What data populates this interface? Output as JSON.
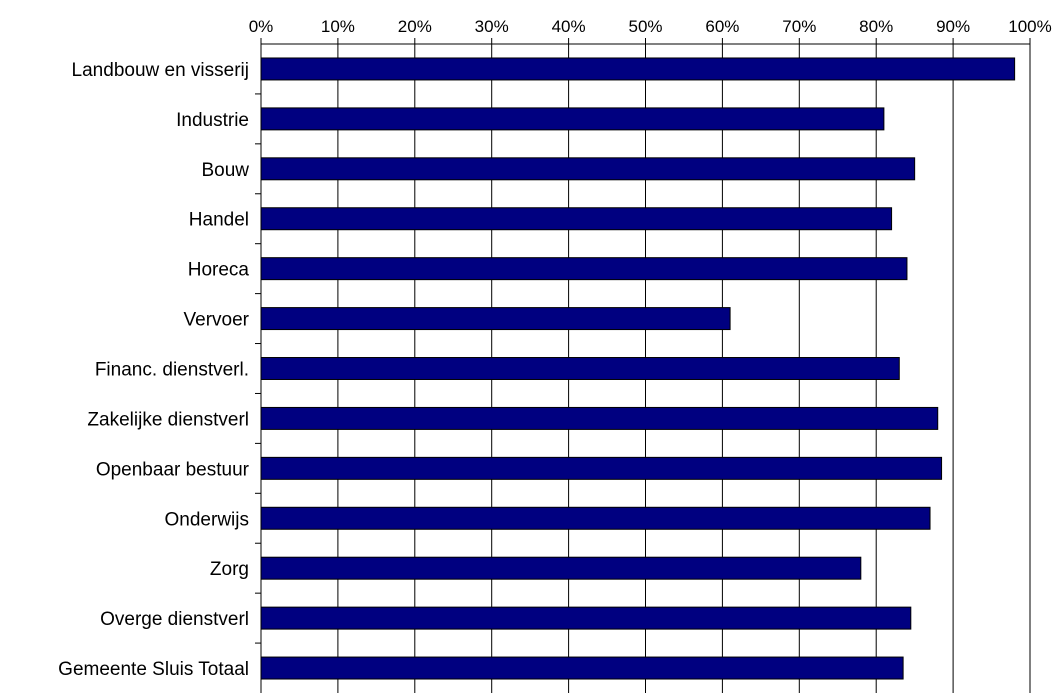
{
  "chart_data": {
    "type": "bar",
    "orientation": "horizontal",
    "categories": [
      "Landbouw en visserij",
      "Industrie",
      "Bouw",
      "Handel",
      "Horeca",
      "Vervoer",
      "Financ. dienstverl.",
      "Zakelijke dienstverl",
      "Openbaar bestuur",
      "Onderwijs",
      "Zorg",
      "Overge dienstverl",
      "Gemeente Sluis Totaal"
    ],
    "values": [
      98,
      81,
      85,
      82,
      84,
      61,
      83,
      88,
      88.5,
      87,
      78,
      84.5,
      83.5
    ],
    "xlim": [
      0,
      100
    ],
    "x_ticks": [
      0,
      10,
      20,
      30,
      40,
      50,
      60,
      70,
      80,
      90,
      100
    ],
    "x_tick_labels": [
      "0%",
      "10%",
      "20%",
      "30%",
      "40%",
      "50%",
      "60%",
      "70%",
      "80%",
      "90%",
      "100%"
    ],
    "x_axis_position": "top",
    "grid": true,
    "legend": "none",
    "colors": {
      "bar": "#000080",
      "bar_edge": "#000000",
      "grid": "#000000"
    }
  }
}
